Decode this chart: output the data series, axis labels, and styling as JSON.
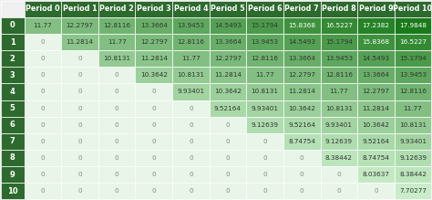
{
  "col_headers": [
    "Period 0",
    "Period 1",
    "Period 2",
    "Period 3",
    "Period 4",
    "Period 5",
    "Period 6",
    "Period 7",
    "Period 8",
    "Period 9",
    "Period 10"
  ],
  "row_headers": [
    "0",
    "1",
    "2",
    "3",
    "4",
    "5",
    "6",
    "7",
    "8",
    "9",
    "10"
  ],
  "cell_texts": [
    [
      "11.77",
      "12.2797",
      "12.8116",
      "13.3664",
      "13.9453",
      "14.5493",
      "15.1794",
      "15.8368",
      "16.5227",
      "17.2382",
      "17.9848"
    ],
    [
      "0",
      "11.2814",
      "11.77",
      "12.2797",
      "12.8116",
      "13.3664",
      "13.9453",
      "14.5493",
      "15.1794",
      "15.8368",
      "16.5227"
    ],
    [
      "0",
      "0",
      "10.8131",
      "11.2814",
      "11.77",
      "12.2797",
      "12.8116",
      "13.3664",
      "13.9453",
      "14.5493",
      "15.1794"
    ],
    [
      "0",
      "0",
      "0",
      "10.3642",
      "10.8131",
      "11.2814",
      "11.77",
      "12.2797",
      "12.8116",
      "13.3664",
      "13.9453"
    ],
    [
      "0",
      "0",
      "0",
      "0",
      "9.93401",
      "10.3642",
      "10.8131",
      "11.2814",
      "11.77",
      "12.2797",
      "12.8116"
    ],
    [
      "0",
      "0",
      "0",
      "0",
      "0",
      "9.52164",
      "9.93401",
      "10.3642",
      "10.8131",
      "11.2814",
      "11.77"
    ],
    [
      "0",
      "0",
      "0",
      "0",
      "0",
      "0",
      "9.12639",
      "9.52164",
      "9.93401",
      "10.3642",
      "10.8131"
    ],
    [
      "0",
      "0",
      "0",
      "0",
      "0",
      "0",
      "0",
      "8.74754",
      "9.12639",
      "9.52164",
      "9.93401"
    ],
    [
      "0",
      "0",
      "0",
      "0",
      "0",
      "0",
      "0",
      "0",
      "8.38442",
      "8.74754",
      "9.12639"
    ],
    [
      "0",
      "0",
      "0",
      "0",
      "0",
      "0",
      "0",
      "0",
      "0",
      "8.03637",
      "8.38442"
    ],
    [
      "0",
      "0",
      "0",
      "0",
      "0",
      "0",
      "0",
      "0",
      "0",
      "0",
      "7.70277"
    ]
  ],
  "table": [
    [
      11.77,
      12.2797,
      12.8116,
      13.3664,
      13.9453,
      14.5493,
      15.1794,
      15.8368,
      16.5227,
      17.2382,
      17.9848
    ],
    [
      0,
      11.2814,
      11.77,
      12.2797,
      12.8116,
      13.3664,
      13.9453,
      14.5493,
      15.1794,
      15.8368,
      16.5227
    ],
    [
      0,
      0,
      10.8131,
      11.2814,
      11.77,
      12.2797,
      12.8116,
      13.3664,
      13.9453,
      14.5493,
      15.1794
    ],
    [
      0,
      0,
      0,
      10.3642,
      10.8131,
      11.2814,
      11.77,
      12.2797,
      12.8116,
      13.3664,
      13.9453
    ],
    [
      0,
      0,
      0,
      0,
      9.93401,
      10.3642,
      10.8131,
      11.2814,
      11.77,
      12.2797,
      12.8116
    ],
    [
      0,
      0,
      0,
      0,
      0,
      9.52164,
      9.93401,
      10.3642,
      10.8131,
      11.2814,
      11.77
    ],
    [
      0,
      0,
      0,
      0,
      0,
      0,
      9.12639,
      9.52164,
      9.93401,
      10.3642,
      10.8131
    ],
    [
      0,
      0,
      0,
      0,
      0,
      0,
      0,
      8.74754,
      9.12639,
      9.52164,
      9.93401
    ],
    [
      0,
      0,
      0,
      0,
      0,
      0,
      0,
      0,
      8.38442,
      8.74754,
      9.12639
    ],
    [
      0,
      0,
      0,
      0,
      0,
      0,
      0,
      0,
      0,
      8.03637,
      8.38442
    ],
    [
      0,
      0,
      0,
      0,
      0,
      0,
      0,
      0,
      0,
      0,
      7.70277
    ]
  ],
  "header_bg": "#2d6a2d",
  "header_fg": "#ffffff",
  "row_header_bg": "#2d6a2d",
  "row_header_fg": "#ffffff",
  "zero_bg": "#e8f5e8",
  "zero_fg": "#888888",
  "color_min": 7.7,
  "color_max": 18.0,
  "cmap_low": "#c8edc8",
  "cmap_high": "#1a7a1a",
  "cell_text_size": 5.2,
  "header_text_size": 5.8,
  "row_header_text_size": 6.0,
  "bg_color": "#f0f0f0"
}
